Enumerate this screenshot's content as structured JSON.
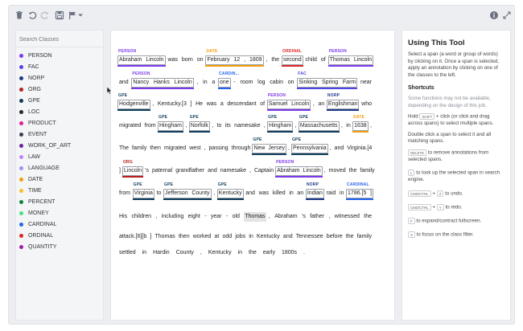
{
  "toolbar": {
    "icons": [
      "trash-icon",
      "undo-icon",
      "redo-icon",
      "save-icon",
      "flag-icon",
      "chevron-down-icon",
      "info-icon",
      "fullscreen-icon"
    ]
  },
  "sidebar": {
    "search_placeholder": "Search Classes",
    "classes": [
      {
        "label": "PERSON",
        "color": "#7c3aed"
      },
      {
        "label": "FAC",
        "color": "#4f46e5"
      },
      {
        "label": "NORP",
        "color": "#1e3a8a"
      },
      {
        "label": "ORG",
        "color": "#b91c1c"
      },
      {
        "label": "GPE",
        "color": "#0f3d5c"
      },
      {
        "label": "LOC",
        "color": "#1f2937"
      },
      {
        "label": "PRODUCT",
        "color": "#e11d9b"
      },
      {
        "label": "EVENT",
        "color": "#374151"
      },
      {
        "label": "WORK_OF_ART",
        "color": "#6b21a8"
      },
      {
        "label": "LAW",
        "color": "#c084fc"
      },
      {
        "label": "LANGUAGE",
        "color": "#a78bfa"
      },
      {
        "label": "DATE",
        "color": "#f59e0b"
      },
      {
        "label": "TIME",
        "color": "#fbbf24"
      },
      {
        "label": "PERCENT",
        "color": "#15803d"
      },
      {
        "label": "MONEY",
        "color": "#4ade80"
      },
      {
        "label": "CARDINAL",
        "color": "#2563eb"
      },
      {
        "label": "ORDINAL",
        "color": "#dc2626"
      },
      {
        "label": "QUANTITY",
        "color": "#a21caf"
      }
    ]
  },
  "document": {
    "lines": [
      {
        "tokens": [
          "Abraham",
          "Lincoln",
          "was",
          "born",
          "on",
          "February",
          "12",
          ",",
          "1809",
          ",",
          "the",
          "second",
          "child",
          "of",
          "Thomas",
          "Lincoln"
        ]
      },
      {
        "tokens": [
          "and",
          "Nancy",
          "Hanks",
          "Lincoln",
          ",",
          "in",
          "a",
          "one",
          "-",
          "room",
          "log",
          "cabin",
          "on",
          "Sinking",
          "Spring",
          "Farm",
          "near"
        ]
      },
      {
        "tokens": [
          "Hodgenville",
          ",",
          "Kentucky.[3",
          "]",
          "He",
          "was",
          "a",
          "descendant",
          "of",
          "Samuel",
          "Lincoln",
          ",",
          "an",
          "Englishman",
          "who"
        ]
      },
      {
        "tokens": [
          "migrated",
          "from",
          "Hingham",
          ",",
          "Norfolk",
          ",",
          "to",
          "its",
          "namesake",
          ",",
          "Hingham",
          ",",
          "Massachusetts",
          ",",
          "in",
          "1638",
          ","
        ]
      },
      {
        "tokens": [
          "The",
          "family",
          "then",
          "migrated",
          "west",
          ",",
          "passing",
          "through",
          "New",
          "Jersey",
          ",",
          "Pennsylvania",
          ",",
          "and",
          "Virginia.[4"
        ]
      },
      {
        "tokens": [
          "]",
          "Lincoln",
          "'s",
          "paternal",
          "grandfather",
          "and",
          "namesake",
          ",",
          "Captain",
          "Abraham",
          "Lincoln",
          ",",
          "moved",
          "the",
          "family"
        ]
      },
      {
        "tokens": [
          "from",
          "Virginia",
          "to",
          "Jefferson",
          "County",
          ",",
          "Kentucky",
          "and",
          "was",
          "killed",
          "in",
          "an",
          "Indian",
          "raid",
          "in",
          "1786.[5",
          "]"
        ]
      },
      {
        "tokens": [
          "His",
          "children",
          ",",
          "including",
          "eight",
          "-",
          "year",
          "-",
          "old",
          "Thomas",
          ",",
          "Abraham",
          "'s",
          "father",
          ",",
          "witnessed",
          "the"
        ]
      },
      {
        "tokens": [
          "attack.[6][b",
          "]",
          "Thomas",
          "then",
          "worked",
          "at",
          "odd",
          "jobs",
          "in",
          "Kentucky",
          "and",
          "Tennessee",
          "before",
          "the",
          "family"
        ]
      },
      {
        "tokens": [
          "settled",
          "in",
          "Hardin",
          "County",
          ",",
          "Kentucky",
          "in",
          "the",
          "early",
          "1800s",
          "."
        ]
      }
    ],
    "annotations": [
      {
        "line": 0,
        "start": 0,
        "end": 1,
        "label": "PERSON",
        "color": "#7c3aed"
      },
      {
        "line": 0,
        "start": 5,
        "end": 8,
        "label": "DATE",
        "color": "#f59e0b"
      },
      {
        "line": 0,
        "start": 11,
        "end": 11,
        "label": "ORDINAL",
        "color": "#dc2626"
      },
      {
        "line": 0,
        "start": 14,
        "end": 15,
        "label": "PERSON",
        "color": "#7c3aed"
      },
      {
        "line": 1,
        "start": 1,
        "end": 3,
        "label": "PERSON",
        "color": "#7c3aed"
      },
      {
        "line": 1,
        "start": 7,
        "end": 7,
        "label": "CARDIN...",
        "color": "#2563eb"
      },
      {
        "line": 1,
        "start": 13,
        "end": 15,
        "label": "FAC",
        "color": "#4f46e5"
      },
      {
        "line": 2,
        "start": 0,
        "end": 0,
        "label": "GPE",
        "color": "#0f3d5c"
      },
      {
        "line": 2,
        "start": 9,
        "end": 10,
        "label": "PERSON",
        "color": "#7c3aed"
      },
      {
        "line": 2,
        "start": 13,
        "end": 13,
        "label": "NORP",
        "color": "#1e3a8a"
      },
      {
        "line": 3,
        "start": 2,
        "end": 2,
        "label": "GPE",
        "color": "#0f3d5c"
      },
      {
        "line": 3,
        "start": 4,
        "end": 4,
        "label": "GPE",
        "color": "#0f3d5c"
      },
      {
        "line": 3,
        "start": 10,
        "end": 10,
        "label": "GPE",
        "color": "#0f3d5c"
      },
      {
        "line": 3,
        "start": 12,
        "end": 12,
        "label": "GPE",
        "color": "#0f3d5c"
      },
      {
        "line": 3,
        "start": 15,
        "end": 15,
        "label": "DATE",
        "color": "#f59e0b"
      },
      {
        "line": 4,
        "start": 8,
        "end": 9,
        "label": "GPE",
        "color": "#0f3d5c"
      },
      {
        "line": 4,
        "start": 11,
        "end": 11,
        "label": "GPE",
        "color": "#0f3d5c"
      },
      {
        "line": 5,
        "start": 1,
        "end": 1,
        "label": "ORG",
        "color": "#b91c1c"
      },
      {
        "line": 5,
        "start": 9,
        "end": 10,
        "label": "PERSON",
        "color": "#7c3aed"
      },
      {
        "line": 6,
        "start": 1,
        "end": 1,
        "label": "GPE",
        "color": "#0f3d5c"
      },
      {
        "line": 6,
        "start": 3,
        "end": 4,
        "label": "GPE",
        "color": "#0f3d5c"
      },
      {
        "line": 6,
        "start": 6,
        "end": 6,
        "label": "GPE",
        "color": "#0f3d5c"
      },
      {
        "line": 6,
        "start": 12,
        "end": 12,
        "label": "NORP",
        "color": "#1e3a8a"
      },
      {
        "line": 6,
        "start": 15,
        "end": 16,
        "label": "CARDINAL",
        "color": "#2563eb"
      }
    ],
    "selected": {
      "line": 7,
      "token": 9
    }
  },
  "help": {
    "title": "Using This Tool",
    "intro": "Select a span (a word or group of words) by clicking on it. Once a span is selected, apply an annotation by clicking on one of the classes to the left.",
    "shortcuts_title": "Shortcuts",
    "note": "Some functions may not be available, depending on the design of this job.",
    "hold_pre": "Hold",
    "hold_key": "SHIFT",
    "hold_post": "+ click (or click and drag across spans) to select multiple spans.",
    "double_click": "Double click a span to select it and all matching spans.",
    "delete_key": "DELETE",
    "delete_text": "to remove annotations from selected spans.",
    "lookup_key": "L",
    "lookup_text": "to look up the selected span in search engine.",
    "undo_key1": "CMD/CTRL",
    "undo_plus": "+",
    "undo_key2": "Z",
    "undo_text": "to undo.",
    "redo_key1": "CMD/CTRL",
    "redo_plus": "+",
    "redo_key2": "Y",
    "redo_text": "to redo.",
    "fullscreen_key": "F",
    "fullscreen_text": "to expand/contract fullscreen.",
    "focus_key": "S",
    "focus_text": "to focus on the class filter."
  }
}
